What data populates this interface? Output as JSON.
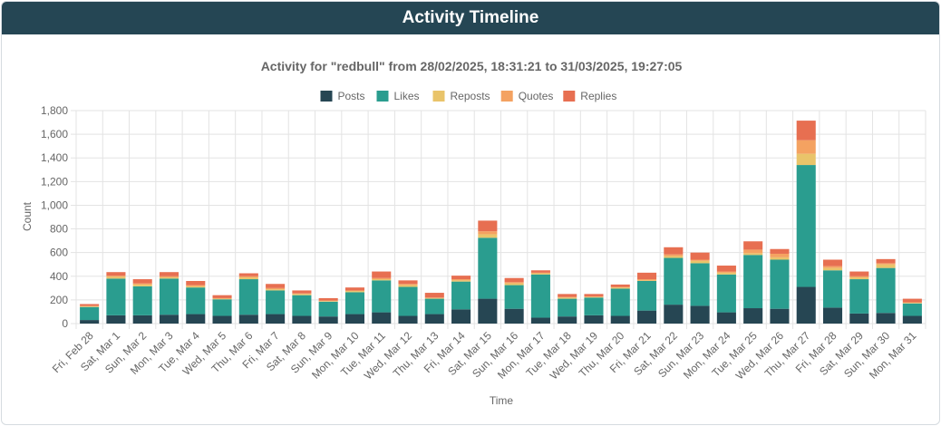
{
  "header": {
    "title": "Activity Timeline"
  },
  "chart_data": {
    "type": "bar",
    "stacked": true,
    "title": "Activity for \"redbull\" from 28/02/2025, 18:31:21 to 31/03/2025, 19:27:05",
    "xlabel": "Time",
    "ylabel": "Count",
    "ylim": [
      0,
      1800
    ],
    "yticks": [
      "0",
      "200",
      "400",
      "600",
      "800",
      "1,000",
      "1,200",
      "1,400",
      "1,600",
      "1,800"
    ],
    "grid": true,
    "legend": "top-center",
    "categories": [
      "Fri, Feb 28",
      "Sat, Mar 1",
      "Sun, Mar 2",
      "Mon, Mar 3",
      "Tue, Mar 4",
      "Wed, Mar 5",
      "Thu, Mar 6",
      "Fri, Mar 7",
      "Sat, Mar 8",
      "Sun, Mar 9",
      "Mon, Mar 10",
      "Tue, Mar 11",
      "Wed, Mar 12",
      "Thu, Mar 13",
      "Fri, Mar 14",
      "Sat, Mar 15",
      "Sun, Mar 16",
      "Mon, Mar 17",
      "Tue, Mar 18",
      "Wed, Mar 19",
      "Thu, Mar 20",
      "Fri, Mar 21",
      "Sat, Mar 22",
      "Sun, Mar 23",
      "Mon, Mar 24",
      "Tue, Mar 25",
      "Wed, Mar 26",
      "Thu, Mar 27",
      "Fri, Mar 28",
      "Sat, Mar 29",
      "Sun, Mar 30",
      "Mon, Mar 31"
    ],
    "series": [
      {
        "name": "Posts",
        "color": "#264653",
        "values": [
          30,
          70,
          70,
          75,
          80,
          65,
          75,
          80,
          65,
          60,
          80,
          95,
          65,
          80,
          120,
          210,
          125,
          50,
          60,
          70,
          65,
          110,
          160,
          150,
          95,
          130,
          125,
          310,
          135,
          85,
          90,
          65
        ]
      },
      {
        "name": "Likes",
        "color": "#2a9d8f",
        "values": [
          110,
          310,
          245,
          305,
          225,
          140,
          300,
          200,
          175,
          125,
          185,
          270,
          245,
          130,
          235,
          515,
          200,
          365,
          150,
          150,
          230,
          250,
          395,
          360,
          320,
          450,
          415,
          1030,
          315,
          290,
          380,
          105
        ]
      },
      {
        "name": "Reposts",
        "color": "#e9c46a",
        "values": [
          5,
          15,
          15,
          10,
          10,
          5,
          15,
          10,
          10,
          5,
          10,
          10,
          15,
          5,
          10,
          30,
          15,
          10,
          10,
          5,
          10,
          5,
          15,
          20,
          15,
          15,
          20,
          95,
          20,
          15,
          30,
          5
        ]
      },
      {
        "name": "Quotes",
        "color": "#f4a261",
        "values": [
          5,
          10,
          10,
          10,
          10,
          5,
          10,
          10,
          5,
          5,
          5,
          10,
          10,
          5,
          10,
          25,
          10,
          5,
          5,
          5,
          5,
          10,
          15,
          10,
          10,
          30,
          30,
          115,
          15,
          10,
          10,
          5
        ]
      },
      {
        "name": "Replies",
        "color": "#e76f51",
        "values": [
          15,
          30,
          35,
          35,
          35,
          25,
          25,
          35,
          25,
          20,
          25,
          55,
          30,
          40,
          30,
          90,
          35,
          20,
          25,
          20,
          20,
          55,
          60,
          60,
          50,
          70,
          40,
          165,
          55,
          40,
          35,
          30
        ]
      }
    ]
  }
}
